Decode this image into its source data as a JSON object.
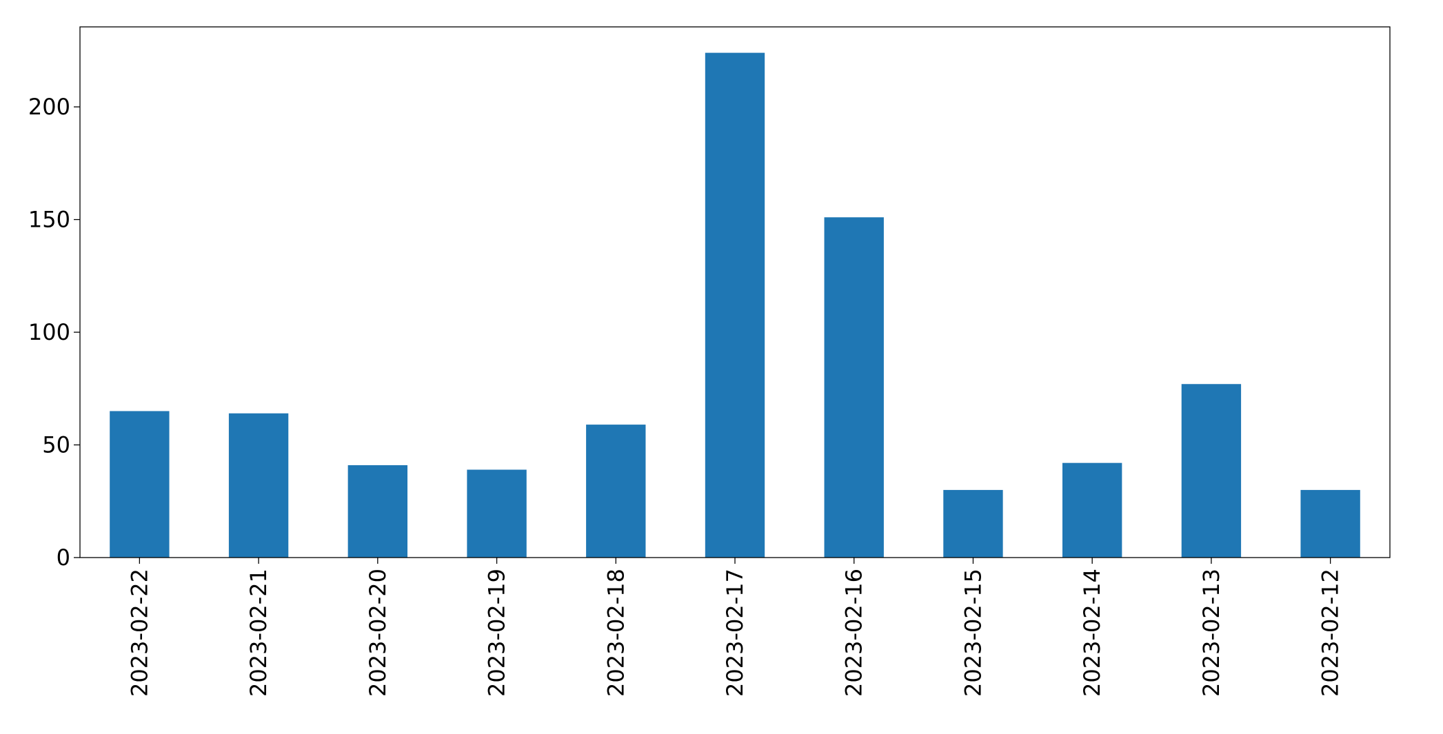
{
  "chart_data": {
    "type": "bar",
    "categories": [
      "2023-02-22",
      "2023-02-21",
      "2023-02-20",
      "2023-02-19",
      "2023-02-18",
      "2023-02-17",
      "2023-02-16",
      "2023-02-15",
      "2023-02-14",
      "2023-02-13",
      "2023-02-12"
    ],
    "values": [
      65,
      64,
      41,
      39,
      59,
      224,
      151,
      30,
      42,
      77,
      30
    ],
    "color": "#1f77b4",
    "ylim": [
      0,
      235.5
    ],
    "yticks": [
      0,
      50,
      100,
      150,
      200
    ],
    "grid": false
  }
}
